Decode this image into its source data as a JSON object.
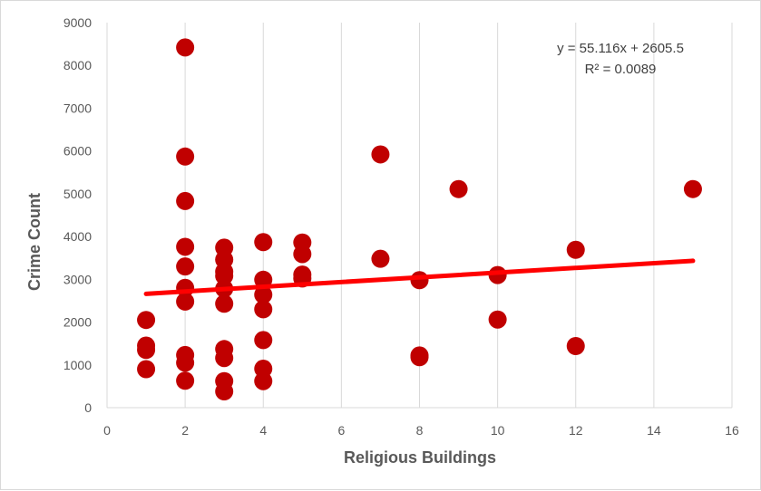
{
  "chart_data": {
    "type": "scatter",
    "xlabel": "Religious Buildings",
    "ylabel": "Crime Count",
    "xlim": [
      0,
      16
    ],
    "ylim": [
      0,
      9000
    ],
    "xticks": [
      0,
      2,
      4,
      6,
      8,
      10,
      12,
      14,
      16
    ],
    "yticks": [
      0,
      1000,
      2000,
      3000,
      4000,
      5000,
      6000,
      7000,
      8000,
      9000
    ],
    "grid": "vertical",
    "colors": {
      "points": "#c00000",
      "trendline": "#ff0000",
      "grid": "#d9d9d9",
      "text": "#595959"
    },
    "points": [
      {
        "x": 1,
        "y": 2050
      },
      {
        "x": 1,
        "y": 1450
      },
      {
        "x": 1,
        "y": 1350
      },
      {
        "x": 1,
        "y": 900
      },
      {
        "x": 2,
        "y": 8420
      },
      {
        "x": 2,
        "y": 5870
      },
      {
        "x": 2,
        "y": 4830
      },
      {
        "x": 2,
        "y": 3760
      },
      {
        "x": 2,
        "y": 3300
      },
      {
        "x": 2,
        "y": 2800
      },
      {
        "x": 2,
        "y": 2480
      },
      {
        "x": 2,
        "y": 1230
      },
      {
        "x": 2,
        "y": 1050
      },
      {
        "x": 2,
        "y": 630
      },
      {
        "x": 3,
        "y": 3740
      },
      {
        "x": 3,
        "y": 3460
      },
      {
        "x": 3,
        "y": 3180
      },
      {
        "x": 3,
        "y": 3080
      },
      {
        "x": 3,
        "y": 2780
      },
      {
        "x": 3,
        "y": 2430
      },
      {
        "x": 3,
        "y": 1370
      },
      {
        "x": 3,
        "y": 1160
      },
      {
        "x": 3,
        "y": 620
      },
      {
        "x": 3,
        "y": 380
      },
      {
        "x": 4,
        "y": 3870
      },
      {
        "x": 4,
        "y": 2990
      },
      {
        "x": 4,
        "y": 2640
      },
      {
        "x": 4,
        "y": 2300
      },
      {
        "x": 4,
        "y": 1580
      },
      {
        "x": 4,
        "y": 910
      },
      {
        "x": 4,
        "y": 620
      },
      {
        "x": 5,
        "y": 3860
      },
      {
        "x": 5,
        "y": 3590
      },
      {
        "x": 5,
        "y": 3110
      },
      {
        "x": 5,
        "y": 3020
      },
      {
        "x": 7,
        "y": 5920
      },
      {
        "x": 7,
        "y": 3480
      },
      {
        "x": 8,
        "y": 2980
      },
      {
        "x": 8,
        "y": 1220
      },
      {
        "x": 8,
        "y": 1180
      },
      {
        "x": 9,
        "y": 5110
      },
      {
        "x": 10,
        "y": 3100
      },
      {
        "x": 10,
        "y": 2060
      },
      {
        "x": 12,
        "y": 3690
      },
      {
        "x": 12,
        "y": 1440
      },
      {
        "x": 15,
        "y": 5110
      }
    ],
    "trendline": {
      "slope": 55.116,
      "intercept": 2605.5,
      "x_range": [
        1,
        15
      ],
      "equation": "y = 55.116x + 2605.5",
      "r_squared": "R² = 0.0089"
    }
  }
}
